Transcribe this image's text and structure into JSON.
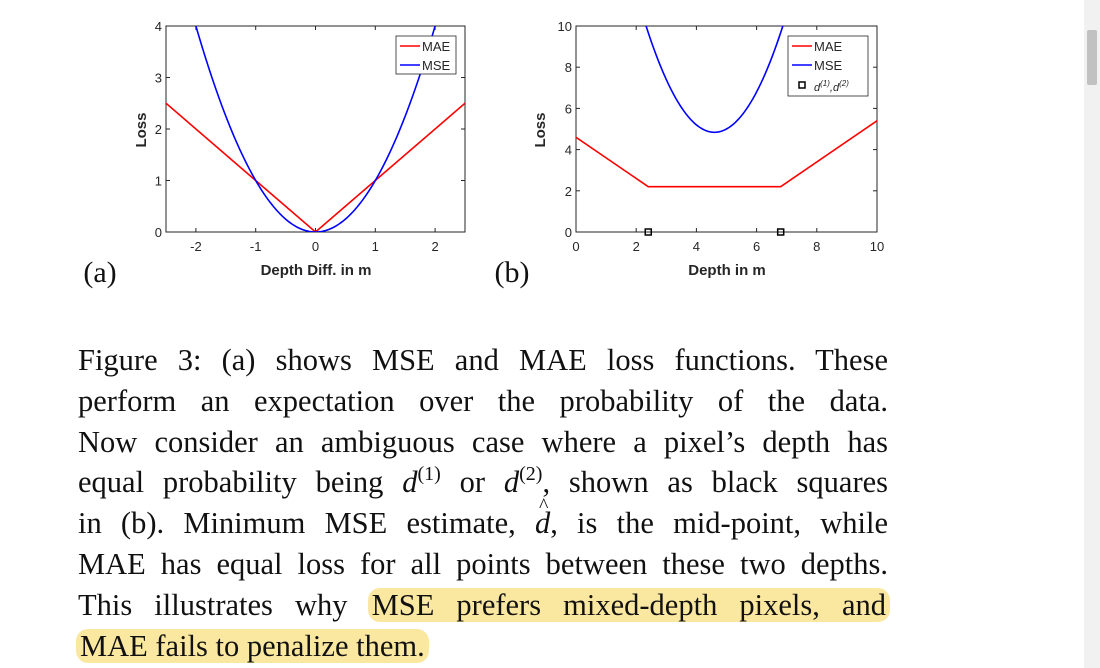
{
  "panel_labels": {
    "a": "(a)",
    "b": "(b)"
  },
  "chart_data": [
    {
      "type": "line",
      "panel": "(a)",
      "title": "",
      "xlabel": "Depth Diff. in m",
      "ylabel": "Loss",
      "xlim": [
        -2.5,
        2.5
      ],
      "ylim": [
        0,
        4
      ],
      "xticks": [
        -2,
        -1,
        0,
        1,
        2
      ],
      "yticks": [
        0,
        1,
        2,
        3,
        4
      ],
      "legend_position": "top-right",
      "series": [
        {
          "name": "MAE",
          "color": "#ff0000",
          "function": "|x|",
          "x": [
            -2.5,
            0,
            2.5
          ],
          "y": [
            2.5,
            0,
            2.5
          ]
        },
        {
          "name": "MSE",
          "color": "#0000ff",
          "function": "x^2",
          "x": [
            -2.0,
            -1.0,
            0,
            1.0,
            2.0
          ],
          "y": [
            4.0,
            1.0,
            0,
            1.0,
            4.0
          ]
        }
      ]
    },
    {
      "type": "line",
      "panel": "(b)",
      "title": "",
      "xlabel": "Depth in m",
      "ylabel": "Loss",
      "xlim": [
        0,
        10
      ],
      "ylim": [
        0,
        10
      ],
      "xticks": [
        0,
        2,
        4,
        6,
        8,
        10
      ],
      "yticks": [
        0,
        2,
        4,
        6,
        8,
        10
      ],
      "legend_position": "top-right",
      "d1": 2.4,
      "d2": 6.8,
      "series": [
        {
          "name": "MAE",
          "color": "#ff0000",
          "x": [
            0,
            2.4,
            6.8,
            10
          ],
          "y": [
            4.6,
            2.2,
            2.2,
            5.4
          ]
        },
        {
          "name": "MSE",
          "color": "#0000ff",
          "x": [
            2.4,
            3.5,
            4.6,
            5.7,
            6.8
          ],
          "y": [
            9.68,
            6.05,
            4.84,
            6.05,
            9.68
          ]
        },
        {
          "name": "d(1),d(2)",
          "color": "#000000",
          "marker": "square",
          "x": [
            2.4,
            6.8
          ],
          "y": [
            0,
            0
          ]
        }
      ]
    }
  ],
  "caption": {
    "lines": [
      "Figure 3: (a) shows MSE and MAE loss functions. These",
      "perform an expectation over the probability of the data.",
      "Now consider an ambiguous case where a pixel’s depth has",
      "equal probability being",
      "or",
      ", shown as black squares",
      "in (b). Minimum MSE estimate,",
      ", is the mid-point, while",
      "MAE has equal loss for all points between these two depths.",
      "This illustrates why",
      "MSE prefers mixed-depth pixels, and",
      "MAE fails to penalize them."
    ],
    "d_symbol": "d",
    "sup1": "(1)",
    "sup2": "(2)"
  }
}
